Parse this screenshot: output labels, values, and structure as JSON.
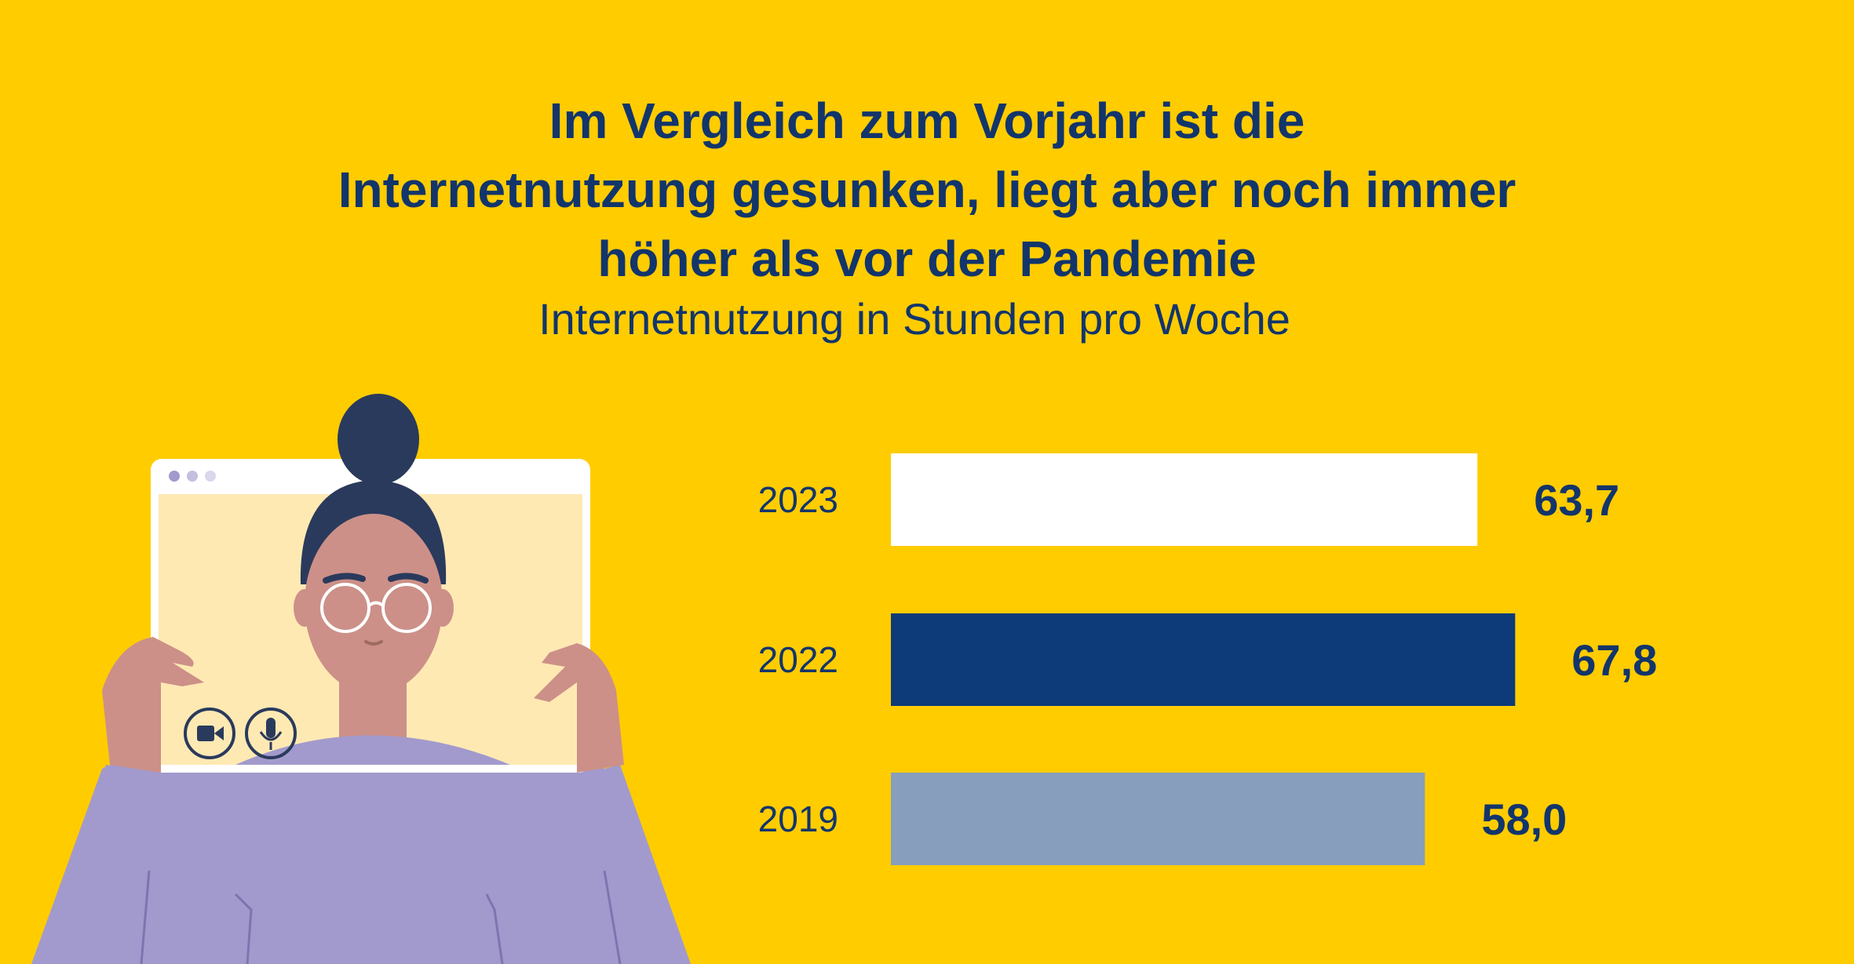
{
  "title_lines": [
    "Im Vergleich zum Vorjahr ist die",
    "Internetnutzung gesunken, liegt aber noch immer",
    "höher als vor der Pandemie"
  ],
  "subtitle": "Internetnutzung in Stunden pro Woche",
  "illustration": {
    "icons": [
      "video-camera-icon",
      "microphone-icon"
    ]
  },
  "chart_data": {
    "type": "bar",
    "orientation": "horizontal",
    "categories": [
      "2023",
      "2022",
      "2019"
    ],
    "values": [
      63.7,
      67.8,
      58.0
    ],
    "value_labels": [
      "63,7",
      "67,8",
      "58,0"
    ],
    "bar_colors": [
      "#FFFFFF",
      "#0D3A78",
      "#879EBD"
    ],
    "label_color": "#12356B",
    "title": "Im Vergleich zum Vorjahr ist die Internetnutzung gesunken, liegt aber noch immer höher als vor der Pandemie",
    "subtitle": "Internetnutzung in Stunden pro Woche",
    "xlim": [
      0,
      68
    ],
    "grid": false,
    "legend": "none"
  },
  "colors": {
    "background": "#FFCC00",
    "text": "#12356B"
  }
}
